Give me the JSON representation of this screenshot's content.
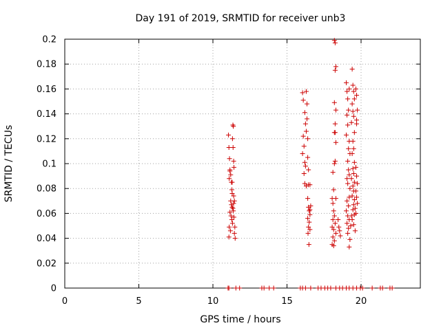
{
  "chart_data": {
    "type": "scatter",
    "title": "Day 191 of 2019, SRMTID for receiver unb3",
    "xlabel": "GPS time / hours",
    "ylabel": "SRMTID / TECUs",
    "xlim": [
      0,
      24
    ],
    "ylim": [
      0,
      0.2
    ],
    "x_ticks": [
      0,
      5,
      10,
      15,
      20
    ],
    "y_ticks": [
      0,
      0.02,
      0.04,
      0.06,
      0.08,
      0.1,
      0.12,
      0.14,
      0.16,
      0.18,
      0.2
    ],
    "x_tick_labels": [
      "0",
      "5",
      "10",
      "15",
      "20"
    ],
    "y_tick_labels": [
      "0",
      "0.02",
      "0.04",
      "0.06",
      "0.08",
      "0.1",
      "0.12",
      "0.14",
      "0.16",
      "0.18",
      "0.2"
    ],
    "grid": true,
    "marker": "+",
    "series": [
      {
        "name": "SRMTID",
        "color": "#cc0000",
        "points": [
          [
            11.02,
            0.0
          ],
          [
            11.08,
            0.0
          ],
          [
            11.55,
            0.0
          ],
          [
            11.8,
            0.0
          ],
          [
            13.3,
            0.0
          ],
          [
            13.45,
            0.0
          ],
          [
            13.8,
            0.0
          ],
          [
            14.1,
            0.0
          ],
          [
            15.9,
            0.0
          ],
          [
            16.05,
            0.0
          ],
          [
            16.25,
            0.0
          ],
          [
            16.6,
            0.0
          ],
          [
            17.1,
            0.0
          ],
          [
            17.3,
            0.0
          ],
          [
            17.55,
            0.0
          ],
          [
            17.75,
            0.0
          ],
          [
            17.95,
            0.0
          ],
          [
            18.3,
            0.0
          ],
          [
            18.55,
            0.0
          ],
          [
            18.75,
            0.0
          ],
          [
            19.0,
            0.0
          ],
          [
            19.2,
            0.0
          ],
          [
            19.45,
            0.0
          ],
          [
            19.7,
            0.0
          ],
          [
            19.95,
            0.0
          ],
          [
            20.1,
            0.0
          ],
          [
            20.75,
            0.0
          ],
          [
            21.3,
            0.0
          ],
          [
            21.45,
            0.0
          ],
          [
            21.95,
            0.0
          ],
          [
            22.1,
            0.0
          ],
          [
            11.05,
            0.123
          ],
          [
            11.08,
            0.113
          ],
          [
            11.12,
            0.104
          ],
          [
            11.15,
            0.094
          ],
          [
            11.1,
            0.088
          ],
          [
            11.2,
            0.091
          ],
          [
            11.25,
            0.085
          ],
          [
            11.28,
            0.079
          ],
          [
            11.3,
            0.076
          ],
          [
            11.2,
            0.07
          ],
          [
            11.25,
            0.067
          ],
          [
            11.3,
            0.065
          ],
          [
            11.35,
            0.064
          ],
          [
            11.15,
            0.061
          ],
          [
            11.22,
            0.058
          ],
          [
            11.28,
            0.055
          ],
          [
            11.32,
            0.052
          ],
          [
            11.1,
            0.049
          ],
          [
            11.18,
            0.046
          ],
          [
            11.08,
            0.041
          ],
          [
            11.4,
            0.068
          ],
          [
            11.45,
            0.07
          ],
          [
            11.38,
            0.062
          ],
          [
            11.42,
            0.057
          ],
          [
            11.48,
            0.049
          ],
          [
            11.45,
            0.044
          ],
          [
            11.5,
            0.04
          ],
          [
            11.35,
            0.131
          ],
          [
            11.38,
            0.13
          ],
          [
            11.32,
            0.12
          ],
          [
            11.36,
            0.113
          ],
          [
            11.4,
            0.102
          ],
          [
            11.42,
            0.097
          ],
          [
            11.3,
            0.085
          ],
          [
            11.4,
            0.074
          ],
          [
            11.15,
            0.095
          ],
          [
            16.05,
            0.157
          ],
          [
            16.1,
            0.151
          ],
          [
            16.2,
            0.141
          ],
          [
            16.25,
            0.132
          ],
          [
            16.3,
            0.126
          ],
          [
            16.1,
            0.122
          ],
          [
            16.15,
            0.114
          ],
          [
            16.05,
            0.108
          ],
          [
            16.2,
            0.101
          ],
          [
            16.25,
            0.098
          ],
          [
            16.15,
            0.092
          ],
          [
            16.2,
            0.084
          ],
          [
            16.3,
            0.082
          ],
          [
            16.45,
            0.083
          ],
          [
            16.55,
            0.083
          ],
          [
            16.3,
            0.158
          ],
          [
            16.35,
            0.148
          ],
          [
            16.35,
            0.136
          ],
          [
            16.4,
            0.12
          ],
          [
            16.4,
            0.105
          ],
          [
            16.45,
            0.095
          ],
          [
            16.4,
            0.072
          ],
          [
            16.45,
            0.065
          ],
          [
            16.5,
            0.062
          ],
          [
            16.55,
            0.059
          ],
          [
            16.4,
            0.056
          ],
          [
            16.5,
            0.053
          ],
          [
            16.45,
            0.049
          ],
          [
            16.55,
            0.047
          ],
          [
            16.42,
            0.044
          ],
          [
            16.48,
            0.035
          ],
          [
            16.55,
            0.063
          ],
          [
            16.6,
            0.066
          ],
          [
            18.2,
            0.199
          ],
          [
            18.25,
            0.197
          ],
          [
            18.3,
            0.178
          ],
          [
            18.25,
            0.175
          ],
          [
            18.2,
            0.149
          ],
          [
            18.3,
            0.143
          ],
          [
            18.25,
            0.132
          ],
          [
            18.2,
            0.125
          ],
          [
            18.3,
            0.117
          ],
          [
            18.1,
            0.093
          ],
          [
            18.25,
            0.102
          ],
          [
            18.2,
            0.1
          ],
          [
            18.15,
            0.079
          ],
          [
            18.3,
            0.072
          ],
          [
            18.05,
            0.072
          ],
          [
            18.1,
            0.068
          ],
          [
            18.15,
            0.062
          ],
          [
            18.2,
            0.058
          ],
          [
            18.1,
            0.055
          ],
          [
            18.25,
            0.052
          ],
          [
            18.05,
            0.049
          ],
          [
            18.15,
            0.047
          ],
          [
            18.3,
            0.044
          ],
          [
            18.1,
            0.041
          ],
          [
            18.2,
            0.038
          ],
          [
            18.05,
            0.035
          ],
          [
            18.15,
            0.034
          ],
          [
            18.5,
            0.049
          ],
          [
            18.55,
            0.046
          ],
          [
            18.6,
            0.042
          ],
          [
            18.45,
            0.055
          ],
          [
            18.25,
            0.125
          ],
          [
            19.0,
            0.165
          ],
          [
            19.05,
            0.158
          ],
          [
            19.1,
            0.152
          ],
          [
            19.2,
            0.16
          ],
          [
            19.15,
            0.143
          ],
          [
            19.05,
            0.139
          ],
          [
            19.1,
            0.131
          ],
          [
            19.0,
            0.123
          ],
          [
            19.2,
            0.118
          ],
          [
            19.15,
            0.112
          ],
          [
            19.25,
            0.108
          ],
          [
            19.1,
            0.102
          ],
          [
            19.15,
            0.095
          ],
          [
            19.2,
            0.091
          ],
          [
            19.05,
            0.088
          ],
          [
            19.1,
            0.084
          ],
          [
            19.25,
            0.08
          ],
          [
            19.2,
            0.073
          ],
          [
            19.05,
            0.07
          ],
          [
            19.15,
            0.066
          ],
          [
            19.0,
            0.062
          ],
          [
            19.1,
            0.058
          ],
          [
            19.2,
            0.055
          ],
          [
            19.05,
            0.052
          ],
          [
            19.15,
            0.048
          ],
          [
            19.1,
            0.044
          ],
          [
            19.25,
            0.039
          ],
          [
            19.2,
            0.033
          ],
          [
            19.3,
            0.05
          ],
          [
            19.35,
            0.058
          ],
          [
            19.4,
            0.176
          ],
          [
            19.45,
            0.163
          ],
          [
            19.5,
            0.158
          ],
          [
            19.55,
            0.152
          ],
          [
            19.4,
            0.148
          ],
          [
            19.45,
            0.142
          ],
          [
            19.5,
            0.138
          ],
          [
            19.35,
            0.133
          ],
          [
            19.55,
            0.125
          ],
          [
            19.45,
            0.118
          ],
          [
            19.5,
            0.112
          ],
          [
            19.4,
            0.108
          ],
          [
            19.55,
            0.101
          ],
          [
            19.45,
            0.096
          ],
          [
            19.5,
            0.092
          ],
          [
            19.35,
            0.088
          ],
          [
            19.55,
            0.085
          ],
          [
            19.45,
            0.082
          ],
          [
            19.5,
            0.078
          ],
          [
            19.4,
            0.074
          ],
          [
            19.55,
            0.071
          ],
          [
            19.5,
            0.067
          ],
          [
            19.45,
            0.063
          ],
          [
            19.55,
            0.059
          ],
          [
            19.4,
            0.055
          ],
          [
            19.5,
            0.051
          ],
          [
            19.6,
            0.046
          ],
          [
            19.65,
            0.16
          ],
          [
            19.7,
            0.155
          ],
          [
            19.75,
            0.143
          ],
          [
            19.7,
            0.135
          ],
          [
            19.65,
            0.097
          ],
          [
            19.7,
            0.09
          ],
          [
            19.75,
            0.084
          ],
          [
            19.65,
            0.078
          ],
          [
            19.7,
            0.073
          ],
          [
            19.75,
            0.068
          ],
          [
            19.6,
            0.064
          ],
          [
            19.65,
            0.06
          ],
          [
            19.7,
            0.132
          ]
        ]
      }
    ]
  }
}
